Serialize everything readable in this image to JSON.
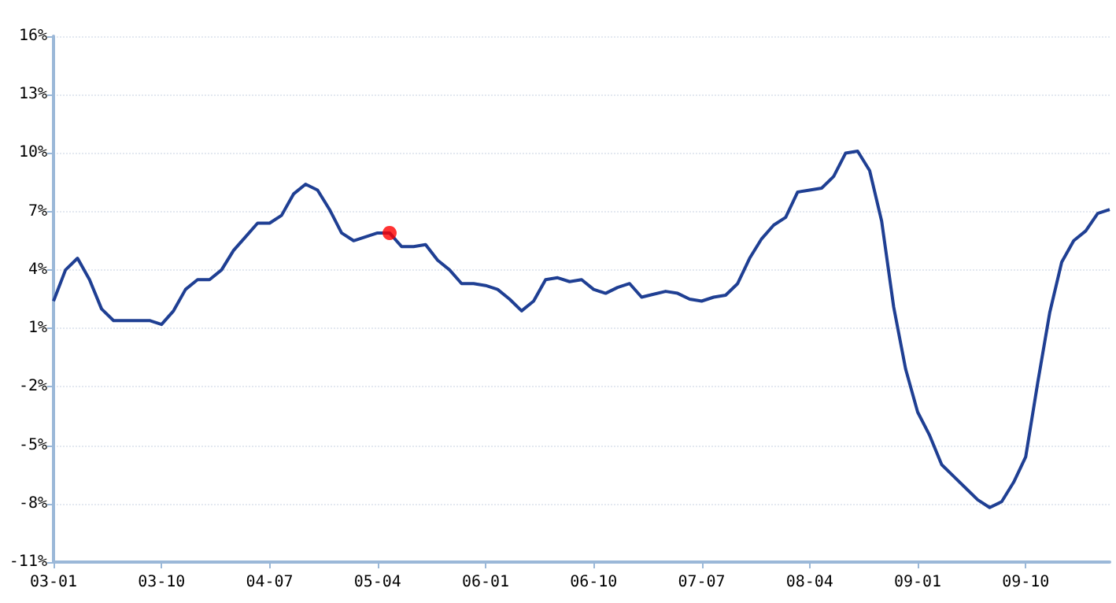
{
  "chart_data": {
    "type": "line",
    "categories": [
      "03-01",
      null,
      null,
      null,
      null,
      null,
      null,
      null,
      null,
      "03-10",
      null,
      null,
      null,
      null,
      null,
      null,
      null,
      null,
      "04-07",
      null,
      null,
      null,
      null,
      null,
      null,
      null,
      null,
      "05-04",
      null,
      null,
      null,
      null,
      null,
      null,
      null,
      null,
      "06-01",
      null,
      null,
      null,
      null,
      null,
      null,
      null,
      null,
      "06-10",
      null,
      null,
      null,
      null,
      null,
      null,
      null,
      null,
      "07-07",
      null,
      null,
      null,
      null,
      null,
      null,
      null,
      null,
      "08-04",
      null,
      null,
      null,
      null,
      null,
      null,
      null,
      null,
      "09-01",
      null,
      null,
      null,
      null,
      null,
      null,
      null,
      null,
      "09-10",
      null,
      null,
      null,
      null,
      null,
      null,
      null
    ],
    "series": [
      {
        "color": "#1f3f93",
        "values": [
          2.4,
          4.0,
          4.6,
          3.5,
          2.0,
          1.4,
          1.4,
          1.4,
          1.4,
          1.2,
          1.9,
          3.0,
          3.5,
          3.5,
          4.0,
          5.0,
          5.7,
          6.4,
          6.4,
          6.8,
          7.9,
          8.4,
          8.1,
          7.1,
          5.9,
          5.5,
          5.7,
          5.9,
          5.9,
          5.2,
          5.2,
          5.3,
          4.5,
          4.0,
          3.3,
          3.3,
          3.2,
          3.0,
          2.5,
          1.9,
          2.4,
          3.5,
          3.6,
          3.4,
          3.5,
          3.0,
          2.8,
          3.1,
          3.3,
          2.6,
          2.75,
          2.9,
          2.8,
          2.5,
          2.4,
          2.6,
          2.7,
          3.3,
          4.6,
          5.6,
          6.3,
          6.7,
          8.0,
          8.1,
          8.2,
          8.8,
          10.0,
          10.1,
          9.1,
          6.5,
          2.1,
          -1.1,
          -3.3,
          -4.5,
          -6.0,
          -6.6,
          -7.2,
          -7.8,
          -8.2,
          -7.9,
          -6.9,
          -5.6,
          -1.8,
          1.8,
          4.4,
          5.5,
          6.0,
          6.9,
          7.1
        ]
      },
      {
        "type": "scatter",
        "marker": "circle",
        "color": "#ff0000",
        "values": [
          null,
          null,
          null,
          null,
          null,
          null,
          null,
          null,
          null,
          null,
          null,
          null,
          null,
          null,
          null,
          null,
          null,
          null,
          null,
          null,
          null,
          null,
          null,
          null,
          null,
          null,
          null,
          null,
          5.9,
          null,
          null,
          null,
          null,
          null,
          null,
          null,
          null,
          null,
          null,
          null,
          null,
          null,
          null,
          null,
          null,
          null,
          null,
          null,
          null,
          null,
          null,
          null,
          null,
          null,
          null,
          null,
          null,
          null,
          null,
          null,
          null,
          null,
          null,
          null,
          null,
          null,
          null,
          null,
          null,
          null,
          null,
          null,
          null,
          null,
          null,
          null,
          null,
          null,
          null,
          null,
          null,
          null,
          null,
          null,
          null,
          null,
          null,
          null,
          null
        ]
      }
    ],
    "ylim": [
      -11,
      16
    ],
    "yticks": [
      {
        "value": -11,
        "label": "-11%"
      },
      {
        "value": -8,
        "label": "-8%"
      },
      {
        "value": -5,
        "label": "-5%"
      },
      {
        "value": -2,
        "label": "-2%"
      },
      {
        "value": 1,
        "label": "1%"
      },
      {
        "value": 4,
        "label": "4%"
      },
      {
        "value": 7,
        "label": "7%"
      },
      {
        "value": 10,
        "label": "10%"
      },
      {
        "value": 13,
        "label": "13%"
      },
      {
        "value": 16,
        "label": "16%"
      }
    ],
    "grid": "y",
    "marker": "none",
    "line_style": "solid"
  }
}
